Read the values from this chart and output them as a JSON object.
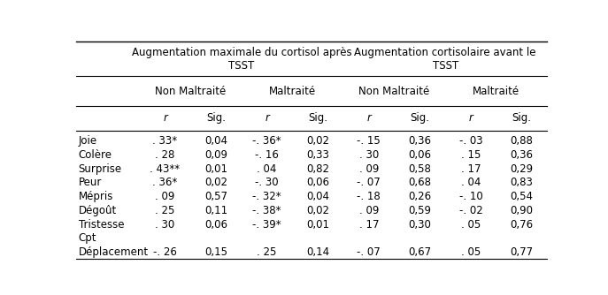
{
  "col_group1": "Augmentation maximale du cortisol après\nTSST",
  "col_group2": "Augmentation cortisolaire avant le\nTSST",
  "sub_col_labels": [
    "Non Maltraité",
    "Maltraité",
    "Non Maltraité",
    "Maltraité"
  ],
  "header_row": [
    "r",
    "Sig.",
    "r",
    "Sig.",
    "r",
    "Sig.",
    "r",
    "Sig."
  ],
  "rows": [
    {
      "label": "Joie",
      "data": [
        ". 33*",
        "0,04",
        "-. 36*",
        "0,02",
        "-. 15",
        "0,36",
        "-. 03",
        "0,88"
      ]
    },
    {
      "label": "Colère",
      "data": [
        ". 28",
        "0,09",
        "-. 16",
        "0,33",
        ". 30",
        "0,06",
        ". 15",
        "0,36"
      ]
    },
    {
      "label": "Surprise",
      "data": [
        ". 43**",
        "0,01",
        ". 04",
        "0,82",
        ". 09",
        "0,58",
        ". 17",
        "0,29"
      ]
    },
    {
      "label": "Peur",
      "data": [
        ". 36*",
        "0,02",
        "-. 30",
        "0,06",
        "-. 07",
        "0,68",
        ". 04",
        "0,83"
      ]
    },
    {
      "label": "Mépris",
      "data": [
        ". 09",
        "0,57",
        "-. 32*",
        "0,04",
        "-. 18",
        "0,26",
        "-. 10",
        "0,54"
      ]
    },
    {
      "label": "Dégoût",
      "data": [
        ". 25",
        "0,11",
        "-. 38*",
        "0,02",
        ". 09",
        "0,59",
        "-. 02",
        "0,90"
      ]
    },
    {
      "label": "Tristesse",
      "data": [
        ". 30",
        "0,06",
        "-. 39*",
        "0,01",
        ". 17",
        "0,30",
        ". 05",
        "0,76"
      ]
    },
    {
      "label": "Cpt",
      "data": null
    },
    {
      "label": "Déplacement",
      "data": [
        "-. 26",
        "0,15",
        ". 25",
        "0,14",
        "-. 07",
        "0,67",
        ". 05",
        "0,77"
      ]
    }
  ],
  "bg_color": "#ffffff",
  "text_color": "#000000",
  "line_color": "#000000",
  "font_size": 8.5
}
